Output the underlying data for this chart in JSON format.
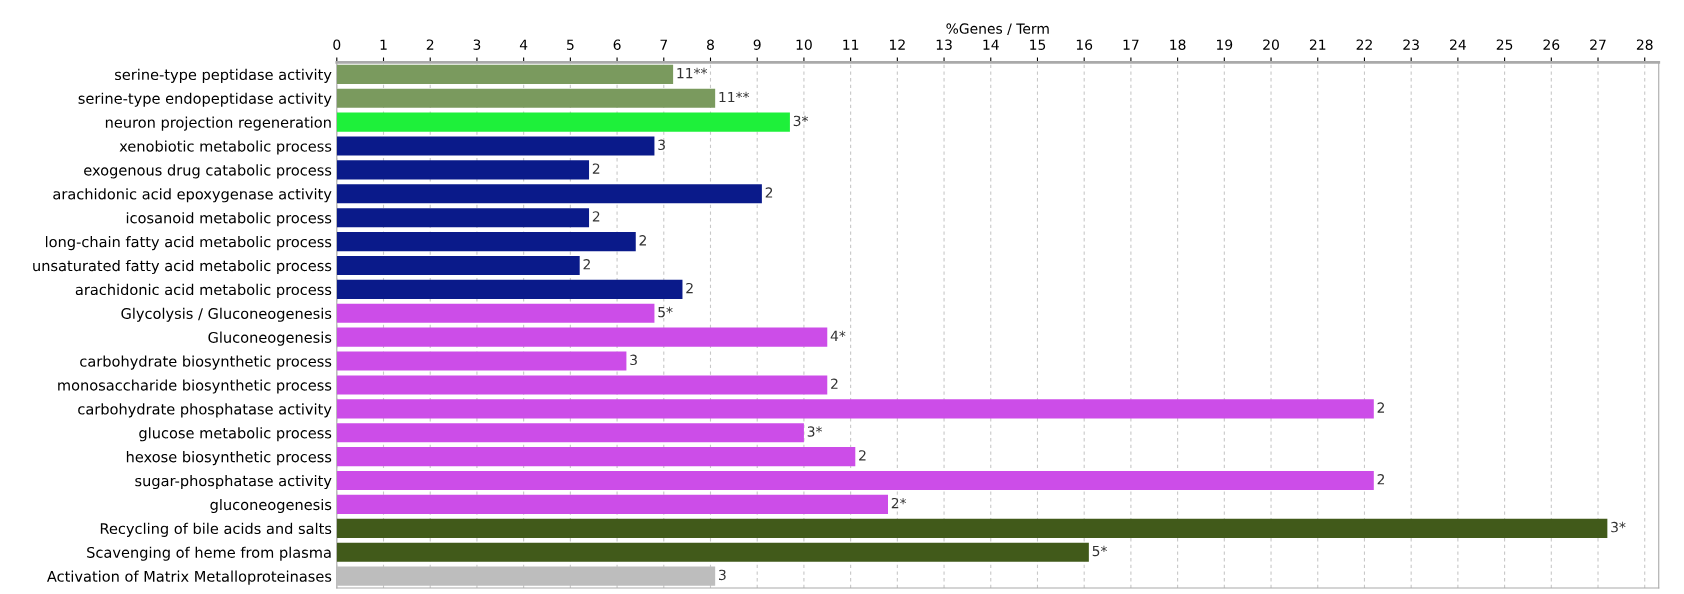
{
  "chart_data": {
    "type": "bar",
    "orientation": "horizontal",
    "xlabel": "%Genes / Term",
    "categories": [
      "serine-type peptidase activity",
      "serine-type endopeptidase activity",
      "neuron projection regeneration",
      "xenobiotic metabolic process",
      "exogenous drug catabolic process",
      "arachidonic acid epoxygenase activity",
      "icosanoid metabolic process",
      "long-chain fatty acid metabolic process",
      "unsaturated fatty acid metabolic process",
      "arachidonic acid metabolic process",
      "Glycolysis / Gluconeogenesis",
      "Gluconeogenesis",
      "carbohydrate biosynthetic process",
      "monosaccharide biosynthetic process",
      "carbohydrate phosphatase activity",
      "glucose metabolic process",
      "hexose biosynthetic process",
      "sugar-phosphatase activity",
      "gluconeogenesis",
      "Recycling of bile acids and salts",
      "Scavenging of heme from plasma",
      "Activation of Matrix Metalloproteinases"
    ],
    "values": [
      7.2,
      8.1,
      9.7,
      6.8,
      5.4,
      9.1,
      5.4,
      6.4,
      5.2,
      7.4,
      6.8,
      10.5,
      6.2,
      10.5,
      22.2,
      10.0,
      11.1,
      22.2,
      11.8,
      27.2,
      16.1,
      8.1
    ],
    "colors": [
      "#7a9a5e",
      "#7a9a5e",
      "#1ef03a",
      "#0a1a8a",
      "#0a1a8a",
      "#0a1a8a",
      "#0a1a8a",
      "#0a1a8a",
      "#0a1a8a",
      "#0a1a8a",
      "#cc4de8",
      "#cc4de8",
      "#cc4de8",
      "#cc4de8",
      "#cc4de8",
      "#cc4de8",
      "#cc4de8",
      "#cc4de8",
      "#cc4de8",
      "#415a1a",
      "#415a1a",
      "#bdbdbd"
    ],
    "annotations": [
      {
        "text": "11**",
        "x": 7.2,
        "y": "serine-type peptidase activity"
      },
      {
        "text": "11**",
        "x": 8.1,
        "y": "serine-type endopeptidase activity"
      },
      {
        "text": "3*",
        "x": 9.7,
        "y": "neuron projection regeneration"
      },
      {
        "text": "3",
        "x": 6.8,
        "y": "xenobiotic metabolic process"
      },
      {
        "text": "2",
        "x": 5.4,
        "y": "exogenous drug catabolic process"
      },
      {
        "text": "2",
        "x": 9.1,
        "y": "arachidonic acid epoxygenase activity"
      },
      {
        "text": "2",
        "x": 5.4,
        "y": "icosanoid metabolic process"
      },
      {
        "text": "2",
        "x": 6.4,
        "y": "long-chain fatty acid metabolic process"
      },
      {
        "text": "2",
        "x": 5.2,
        "y": "unsaturated fatty acid metabolic process"
      },
      {
        "text": "2",
        "x": 7.4,
        "y": "arachidonic acid metabolic process"
      },
      {
        "text": "5*",
        "x": 6.8,
        "y": "Glycolysis / Gluconeogenesis"
      },
      {
        "text": "4*",
        "x": 10.5,
        "y": "Gluconeogenesis"
      },
      {
        "text": "3",
        "x": 6.2,
        "y": "carbohydrate biosynthetic process"
      },
      {
        "text": "2",
        "x": 10.5,
        "y": "monosaccharide biosynthetic process"
      },
      {
        "text": "2",
        "x": 22.2,
        "y": "carbohydrate phosphatase activity"
      },
      {
        "text": "3*",
        "x": 10.0,
        "y": "glucose metabolic process"
      },
      {
        "text": "2",
        "x": 11.1,
        "y": "hexose biosynthetic process"
      },
      {
        "text": "2",
        "x": 22.2,
        "y": "sugar-phosphatase activity"
      },
      {
        "text": "2*",
        "x": 11.8,
        "y": "gluconeogenesis"
      },
      {
        "text": "3*",
        "x": 27.2,
        "y": "Recycling of bile acids and salts"
      },
      {
        "text": "5*",
        "x": 16.1,
        "y": "Scavenging of heme from plasma"
      },
      {
        "text": "3",
        "x": 8.1,
        "y": "Activation of Matrix Metalloproteinases"
      }
    ],
    "xlim": [
      0,
      28.3
    ],
    "xticks": [
      0,
      1,
      2,
      3,
      4,
      5,
      6,
      7,
      8,
      9,
      10,
      11,
      12,
      13,
      14,
      15,
      16,
      17,
      18,
      19,
      20,
      21,
      22,
      23,
      24,
      25,
      26,
      27,
      28
    ],
    "grid": "x"
  }
}
